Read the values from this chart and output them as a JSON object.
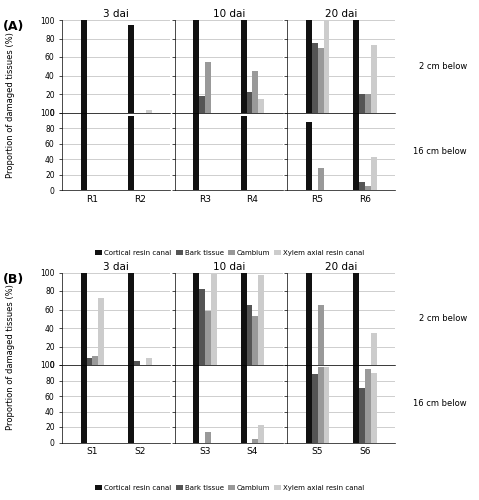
{
  "panel_A": {
    "dai_labels": [
      "3 dai",
      "10 dai",
      "20 dai"
    ],
    "tree_labels": [
      [
        "R1",
        "R2"
      ],
      [
        "R3",
        "R4"
      ],
      [
        "R5",
        "R6"
      ]
    ],
    "top_data": [
      [
        [
          100,
          0,
          0,
          0
        ],
        [
          95,
          0,
          0,
          3
        ]
      ],
      [
        [
          100,
          18,
          55,
          0
        ],
        [
          100,
          22,
          45,
          15
        ]
      ],
      [
        [
          100,
          75,
          70,
          100
        ],
        [
          100,
          20,
          20,
          73
        ]
      ]
    ],
    "bot_data": [
      [
        [
          100,
          0,
          0,
          0
        ],
        [
          95,
          0,
          0,
          0
        ]
      ],
      [
        [
          100,
          0,
          0,
          0
        ],
        [
          95,
          0,
          0,
          0
        ]
      ],
      [
        [
          88,
          0,
          28,
          0
        ],
        [
          100,
          10,
          5,
          42
        ]
      ]
    ]
  },
  "panel_B": {
    "dai_labels": [
      "3 dai",
      "10 dai",
      "20 dai"
    ],
    "tree_labels": [
      [
        "S1",
        "S2"
      ],
      [
        "S3",
        "S4"
      ],
      [
        "S5",
        "S6"
      ]
    ],
    "top_data": [
      [
        [
          100,
          8,
          10,
          72
        ],
        [
          100,
          4,
          0,
          8
        ]
      ],
      [
        [
          100,
          82,
          58,
          98
        ],
        [
          100,
          65,
          53,
          97
        ]
      ],
      [
        [
          100,
          0,
          65,
          0
        ],
        [
          100,
          0,
          0,
          35
        ]
      ]
    ],
    "bot_data": [
      [
        [
          100,
          0,
          0,
          0
        ],
        [
          100,
          0,
          0,
          0
        ]
      ],
      [
        [
          100,
          0,
          13,
          0
        ],
        [
          100,
          0,
          5,
          22
        ]
      ],
      [
        [
          100,
          88,
          98,
          97
        ],
        [
          100,
          70,
          95,
          90
        ]
      ]
    ]
  },
  "colors": [
    "#111111",
    "#555555",
    "#999999",
    "#cccccc"
  ],
  "legend_labels": [
    "Cortical resin canal",
    "Bark tissue",
    "Cambium",
    "Xylem axial resin canal"
  ],
  "ylabel": "Proportion of damaged tissues (%)"
}
